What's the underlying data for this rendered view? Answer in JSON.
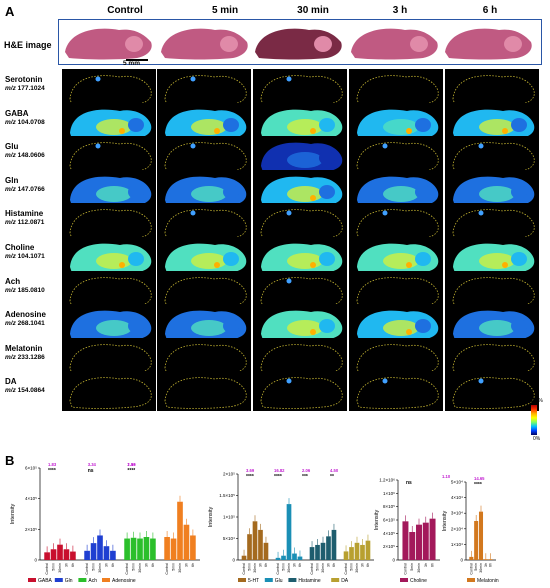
{
  "panels": {
    "a": "A",
    "b": "B"
  },
  "columns": [
    "Control",
    "5 min",
    "30 min",
    "3 h",
    "6 h"
  ],
  "he_label": "H&E image",
  "scale_bar": "5 mm",
  "rows": [
    {
      "name": "Serotonin",
      "mz_prefix": "m/z",
      "mz": "177.1024"
    },
    {
      "name": "GABA",
      "mz_prefix": "m/z",
      "mz": "104.0708"
    },
    {
      "name": "Glu",
      "mz_prefix": "m/z",
      "mz": "148.0606"
    },
    {
      "name": "Gln",
      "mz_prefix": "m/z",
      "mz": "147.0766"
    },
    {
      "name": "Histamine",
      "mz_prefix": "m/z",
      "mz": "112.0871"
    },
    {
      "name": "Choline",
      "mz_prefix": "m/z",
      "mz": "104.1071"
    },
    {
      "name": "Ach",
      "mz_prefix": "m/z",
      "mz": "185.0810"
    },
    {
      "name": "Adenosine",
      "mz_prefix": "m/z",
      "mz": "268.1041"
    },
    {
      "name": "Melatonin",
      "mz_prefix": "m/z",
      "mz": "233.1286"
    },
    {
      "name": "DA",
      "mz_prefix": "m/z",
      "mz": "154.0864"
    }
  ],
  "colorbar": {
    "top": "100%",
    "bottom": "0%"
  },
  "colors": {
    "he_frame": "#2a56a6",
    "GABA": "#c8102e",
    "Gln": "#1f3fd1",
    "Ach": "#2bbf2b",
    "Adenosine": "#f07f20",
    "5-HT": "#a46a1f",
    "Glu": "#1a8fb5",
    "Histamine": "#1e5d6e",
    "DA": "#b8a030",
    "Choline": "#a3195b",
    "Melatonin": "#d2781e",
    "annotation": "#c21fd1"
  },
  "chart_data": [
    {
      "type": "bar",
      "ylabel": "Intensity",
      "yticks": [
        "0",
        "2×10⁵",
        "4×10⁵",
        "6×10⁵"
      ],
      "ylim": [
        0,
        600000
      ],
      "categories": [
        "Control",
        "5min",
        "30min",
        "3h",
        "6h"
      ],
      "series": [
        {
          "name": "GABA",
          "values": [
            50000,
            70000,
            100000,
            70000,
            55000
          ]
        },
        {
          "name": "Gln",
          "values": [
            60000,
            110000,
            160000,
            90000,
            60000
          ]
        },
        {
          "name": "Ach",
          "values": [
            140000,
            145000,
            140000,
            150000,
            140000
          ]
        },
        {
          "name": "Adenosine",
          "values": [
            150000,
            140000,
            380000,
            230000,
            160000
          ]
        }
      ],
      "annotations": [
        "1.83",
        "****",
        "3.34",
        "ns",
        "1.16",
        "2.99",
        "****"
      ]
    },
    {
      "type": "bar",
      "ylabel": "Intensity",
      "yticks": [
        "0",
        "5×10⁴",
        "1×10⁵",
        "1.5×10⁵",
        "2×10⁵"
      ],
      "ylim": [
        0,
        200000
      ],
      "categories": [
        "Control",
        "5min",
        "30min",
        "3h",
        "6h"
      ],
      "series": [
        {
          "name": "5-HT",
          "values": [
            10000,
            60000,
            90000,
            70000,
            40000
          ]
        },
        {
          "name": "Glu",
          "values": [
            5000,
            10000,
            130000,
            15000,
            8000
          ]
        },
        {
          "name": "Histamine",
          "values": [
            30000,
            35000,
            40000,
            55000,
            70000
          ]
        },
        {
          "name": "DA",
          "values": [
            20000,
            30000,
            40000,
            35000,
            45000
          ]
        }
      ],
      "annotations": [
        "3.69",
        "****",
        "16.82",
        "****",
        "2.06",
        "***",
        "4.50",
        "**"
      ]
    },
    {
      "type": "bar",
      "ylabel": "Intensity",
      "yticks": [
        "0",
        "2×10⁵",
        "4×10⁵",
        "6×10⁵",
        "8×10⁵",
        "1×10⁶",
        "1.2×10⁶"
      ],
      "ylim": [
        0,
        1200000
      ],
      "categories": [
        "Control",
        "5min",
        "30min",
        "3h",
        "6h"
      ],
      "series": [
        {
          "name": "Choline",
          "values": [
            580000,
            420000,
            530000,
            560000,
            620000
          ]
        }
      ],
      "annotations": [
        "ns",
        "1.10"
      ]
    },
    {
      "type": "bar",
      "ylabel": "Intensity",
      "yticks": [
        "0",
        "1×10⁴",
        "2×10⁴",
        "3×10⁴",
        "4×10⁴",
        "5×10⁴"
      ],
      "ylim": [
        0,
        50000
      ],
      "categories": [
        "Control",
        "5min",
        "30min",
        "3h",
        "6h"
      ],
      "series": [
        {
          "name": "Melatonin",
          "values": [
            2000,
            25000,
            31000,
            500,
            500
          ]
        }
      ],
      "annotations": [
        "14.65",
        "****"
      ]
    }
  ]
}
